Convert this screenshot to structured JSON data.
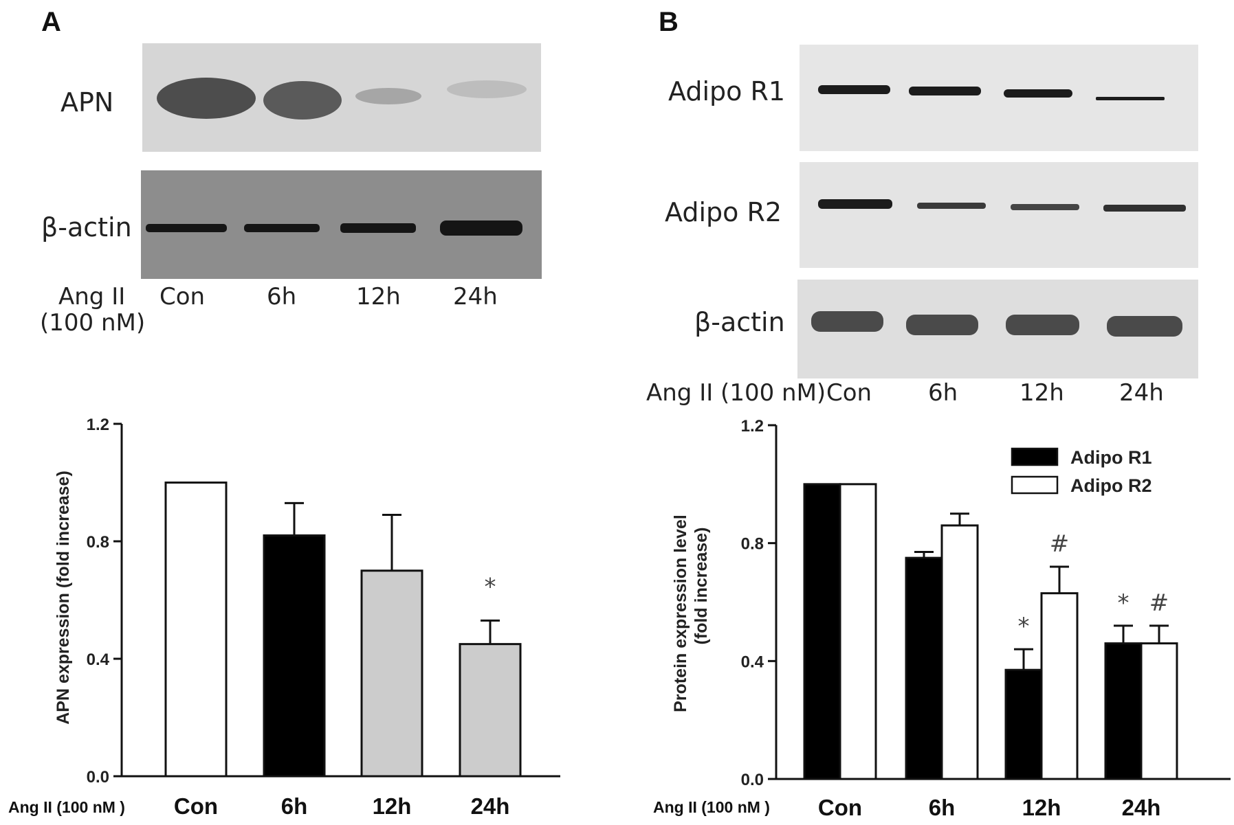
{
  "panels": {
    "a": {
      "letter": "A",
      "blot_labels": [
        "APN",
        "β-actin"
      ],
      "treatment_line1": "Ang II",
      "treatment_line2": "(100 nM)",
      "lanes": [
        "Con",
        "6h",
        "12h",
        "24h"
      ]
    },
    "b": {
      "letter": "B",
      "blot_labels": [
        "Adipo R1",
        "Adipo R2",
        "β-actin"
      ],
      "treatment": "Ang II (100 nM)",
      "lanes": [
        "Con",
        "6h",
        "12h",
        "24h"
      ]
    }
  },
  "colors": {
    "black_bar": "#000000",
    "white_bar": "#ffffff",
    "gray_bar": "#cccccc",
    "blot_background_light": "#d9d9d9",
    "blot_background_dark": "#8c8c8c",
    "band": "#1e1e1e"
  },
  "chart_data": [
    {
      "type": "bar",
      "panel": "A",
      "condition_label": "Ang II (100 nM )",
      "categories": [
        "Con",
        "6h",
        "12h",
        "24h"
      ],
      "series": [
        {
          "values": [
            1.0,
            0.82,
            0.7,
            0.45
          ],
          "errors": [
            0,
            0.11,
            0.19,
            0.08
          ],
          "fills": [
            "white",
            "black",
            "gray",
            "gray"
          ]
        }
      ],
      "significance": [
        "",
        "",
        "",
        "*"
      ],
      "ylabel": "APN expression  (fold increase)",
      "ylim": [
        0.0,
        1.2
      ],
      "yticks": [
        "0.0",
        "0.4",
        "0.8",
        "1.2"
      ],
      "grid": false
    },
    {
      "type": "bar",
      "panel": "B",
      "condition_label": "Ang II (100 nM )",
      "categories": [
        "Con",
        "6h",
        "12h",
        "24h"
      ],
      "series": [
        {
          "name": "Adipo R1",
          "fill": "black",
          "values": [
            1.0,
            0.75,
            0.37,
            0.46
          ],
          "errors": [
            0,
            0.02,
            0.07,
            0.06
          ],
          "significance": [
            "",
            "",
            "*",
            "*"
          ]
        },
        {
          "name": "Adipo R2",
          "fill": "white",
          "values": [
            1.0,
            0.86,
            0.63,
            0.46
          ],
          "errors": [
            0,
            0.04,
            0.09,
            0.06
          ],
          "significance": [
            "",
            "",
            "#",
            "#"
          ]
        }
      ],
      "ylabel_line1": "Protein expression level",
      "ylabel_line2": "(fold increase)",
      "ylim": [
        0.0,
        1.2
      ],
      "yticks": [
        "0.0",
        "0.4",
        "0.8",
        "1.2"
      ],
      "legend_position": "top-right",
      "grid": false
    }
  ]
}
